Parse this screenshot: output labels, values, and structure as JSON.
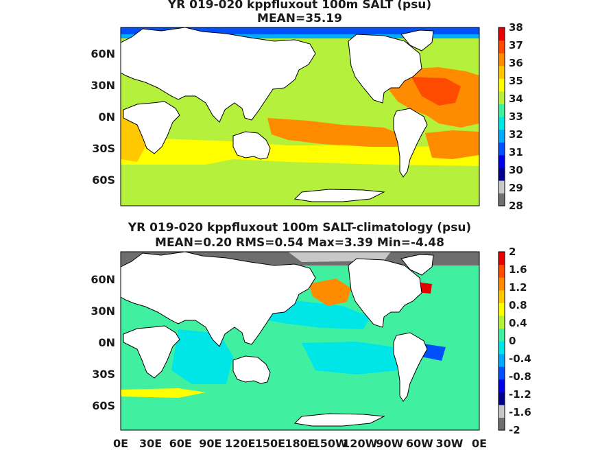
{
  "panels": [
    {
      "title_line1": "YR 019-020 kppfluxout 100m SALT (psu)",
      "title_line2": "MEAN=35.19",
      "lat_labels": [
        "60N",
        "30N",
        "0N",
        "30S",
        "60S"
      ],
      "lon_labels": [],
      "colorbar": {
        "labels": [
          "38",
          "37",
          "36",
          "35",
          "34",
          "33",
          "32",
          "31",
          "30",
          "29",
          "28"
        ],
        "colors": [
          "#6e6e6e",
          "#c8c8c8",
          "#00008c",
          "#0000e6",
          "#0050ff",
          "#00aaff",
          "#00e6e6",
          "#40f0a0",
          "#b4f03c",
          "#ffff00",
          "#ffc800",
          "#ff8c00",
          "#ff4b00",
          "#e60000"
        ]
      }
    },
    {
      "title_line1": "YR 019-020 kppfluxout 100m SALT-climatology (psu)",
      "title_line2": "MEAN=0.20   RMS=0.54   Max=3.39   Min=-4.48",
      "lat_labels": [
        "60N",
        "30N",
        "0N",
        "30S",
        "60S"
      ],
      "lon_labels": [
        "0E",
        "30E",
        "60E",
        "90E",
        "120E",
        "150E",
        "180E",
        "150W",
        "120W",
        "90W",
        "60W",
        "30W",
        "0E"
      ],
      "colorbar": {
        "labels": [
          "2",
          "1.6",
          "1.2",
          "0.8",
          "0.4",
          "0",
          "-0.4",
          "-0.8",
          "-1.2",
          "-1.6",
          "-2"
        ],
        "colors": [
          "#6e6e6e",
          "#c8c8c8",
          "#00008c",
          "#0000e6",
          "#0050ff",
          "#00aaff",
          "#00e6e6",
          "#40f0a0",
          "#b4f03c",
          "#ffff00",
          "#ffc800",
          "#ff8c00",
          "#ff4b00",
          "#e60000"
        ]
      }
    }
  ],
  "colors": {
    "land": "#ffffff",
    "coast": "#000000",
    "sea_ice": "#6e6e6e",
    "top_ocean_base": "#b4f03c",
    "top_high_salt": "#ff8c00",
    "top_very_high_salt": "#ff4b00",
    "top_mid": "#ffc800",
    "top_low_salt": "#00aaff",
    "bottom_ocean_base": "#40f0a0",
    "bottom_positive": "#ffc800",
    "bottom_negative": "#00aaff"
  }
}
